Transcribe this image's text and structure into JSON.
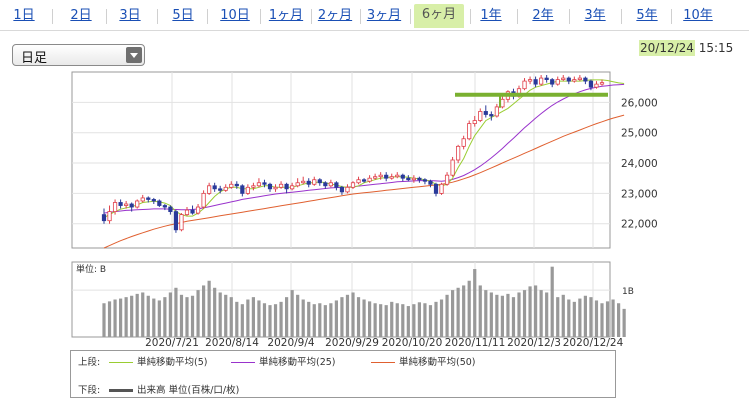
{
  "tabs": [
    {
      "label": "1日",
      "active": false
    },
    {
      "label": "2日",
      "active": false
    },
    {
      "label": "3日",
      "active": false
    },
    {
      "label": "5日",
      "active": false
    },
    {
      "label": "10日",
      "active": false
    },
    {
      "label": "1ヶ月",
      "active": false
    },
    {
      "label": "2ヶ月",
      "active": false
    },
    {
      "label": "3ヶ月",
      "active": false
    },
    {
      "label": "6ヶ月",
      "active": true
    },
    {
      "label": "1年",
      "active": false
    },
    {
      "label": "2年",
      "active": false
    },
    {
      "label": "3年",
      "active": false
    },
    {
      "label": "5年",
      "active": false
    },
    {
      "label": "10年",
      "active": false
    }
  ],
  "select": {
    "value": "日足"
  },
  "datetime": {
    "date": "20/12/24",
    "time": "15:15"
  },
  "legend": {
    "upper_label": "上段:",
    "lower_label": "下段:",
    "ma5": "単純移動平均(5)",
    "ma25": "単純移動平均(25)",
    "ma50": "単純移動平均(50)",
    "volume": "出来高 単位(百株/口/枚)"
  },
  "colors": {
    "up": "#e0404a",
    "down": "#2a3a9a",
    "ma5": "#9acd32",
    "ma25": "#9933cc",
    "ma50": "#e06030",
    "volume": "#999999",
    "highlight": "#7ab030"
  },
  "chart_data": {
    "type": "candlestick",
    "price_ticks": [
      22000,
      23000,
      24000,
      25000,
      26000
    ],
    "price_range": [
      21200,
      27000
    ],
    "x_labels": [
      "2020/7/21",
      "2020/8/14",
      "2020/9/4",
      "2020/9/29",
      "2020/10/20",
      "2020/11/11",
      "2020/12/3",
      "2020/12/24"
    ],
    "volume_unit": "単位: B",
    "volume_tick": "1B",
    "volume_range": [
      0,
      1.6
    ],
    "highlight_level": 26250,
    "candles": [
      {
        "o": 22300,
        "c": 22100,
        "h": 22500,
        "l": 22000
      },
      {
        "o": 22100,
        "c": 22400,
        "h": 22600,
        "l": 22000
      },
      {
        "o": 22400,
        "c": 22700,
        "h": 22800,
        "l": 22300
      },
      {
        "o": 22700,
        "c": 22600,
        "h": 22800,
        "l": 22500
      },
      {
        "o": 22600,
        "c": 22650,
        "h": 22750,
        "l": 22500
      },
      {
        "o": 22650,
        "c": 22550,
        "h": 22700,
        "l": 22400
      },
      {
        "o": 22550,
        "c": 22750,
        "h": 22800,
        "l": 22500
      },
      {
        "o": 22750,
        "c": 22850,
        "h": 22950,
        "l": 22700
      },
      {
        "o": 22850,
        "c": 22800,
        "h": 22900,
        "l": 22700
      },
      {
        "o": 22800,
        "c": 22750,
        "h": 22850,
        "l": 22650
      },
      {
        "o": 22750,
        "c": 22600,
        "h": 22800,
        "l": 22550
      },
      {
        "o": 22600,
        "c": 22550,
        "h": 22650,
        "l": 22450
      },
      {
        "o": 22550,
        "c": 22400,
        "h": 22600,
        "l": 22300
      },
      {
        "o": 22400,
        "c": 21800,
        "h": 22450,
        "l": 21700
      },
      {
        "o": 21800,
        "c": 22300,
        "h": 22350,
        "l": 21750
      },
      {
        "o": 22300,
        "c": 22450,
        "h": 22550,
        "l": 22250
      },
      {
        "o": 22450,
        "c": 22350,
        "h": 22600,
        "l": 22300
      },
      {
        "o": 22350,
        "c": 22550,
        "h": 22650,
        "l": 22300
      },
      {
        "o": 22550,
        "c": 23000,
        "h": 23100,
        "l": 22500
      },
      {
        "o": 23000,
        "c": 23250,
        "h": 23350,
        "l": 22950
      },
      {
        "o": 23250,
        "c": 23150,
        "h": 23350,
        "l": 23050
      },
      {
        "o": 23150,
        "c": 23100,
        "h": 23250,
        "l": 23000
      },
      {
        "o": 23100,
        "c": 23200,
        "h": 23300,
        "l": 23050
      },
      {
        "o": 23200,
        "c": 23300,
        "h": 23400,
        "l": 23150
      },
      {
        "o": 23300,
        "c": 23250,
        "h": 23400,
        "l": 23150
      },
      {
        "o": 23250,
        "c": 23000,
        "h": 23300,
        "l": 22900
      },
      {
        "o": 23000,
        "c": 23200,
        "h": 23300,
        "l": 22950
      },
      {
        "o": 23200,
        "c": 23250,
        "h": 23350,
        "l": 23100
      },
      {
        "o": 23250,
        "c": 23350,
        "h": 23500,
        "l": 23200
      },
      {
        "o": 23350,
        "c": 23300,
        "h": 23450,
        "l": 23200
      },
      {
        "o": 23300,
        "c": 23150,
        "h": 23350,
        "l": 23050
      },
      {
        "o": 23150,
        "c": 23200,
        "h": 23300,
        "l": 23050
      },
      {
        "o": 23200,
        "c": 23300,
        "h": 23400,
        "l": 23150
      },
      {
        "o": 23300,
        "c": 23150,
        "h": 23350,
        "l": 23000
      },
      {
        "o": 23150,
        "c": 23250,
        "h": 23350,
        "l": 23100
      },
      {
        "o": 23250,
        "c": 23350,
        "h": 23500,
        "l": 23200
      },
      {
        "o": 23350,
        "c": 23400,
        "h": 23550,
        "l": 23300
      },
      {
        "o": 23400,
        "c": 23300,
        "h": 23500,
        "l": 23200
      },
      {
        "o": 23300,
        "c": 23450,
        "h": 23550,
        "l": 23250
      },
      {
        "o": 23450,
        "c": 23350,
        "h": 23500,
        "l": 23250
      },
      {
        "o": 23350,
        "c": 23250,
        "h": 23400,
        "l": 23150
      },
      {
        "o": 23250,
        "c": 23350,
        "h": 23450,
        "l": 23200
      },
      {
        "o": 23350,
        "c": 23200,
        "h": 23400,
        "l": 23100
      },
      {
        "o": 23200,
        "c": 23050,
        "h": 23250,
        "l": 22950
      },
      {
        "o": 23050,
        "c": 23200,
        "h": 23300,
        "l": 23000
      },
      {
        "o": 23200,
        "c": 23350,
        "h": 23400,
        "l": 23150
      },
      {
        "o": 23350,
        "c": 23450,
        "h": 23550,
        "l": 23300
      },
      {
        "o": 23450,
        "c": 23400,
        "h": 23500,
        "l": 23350
      },
      {
        "o": 23400,
        "c": 23500,
        "h": 23600,
        "l": 23350
      },
      {
        "o": 23500,
        "c": 23550,
        "h": 23650,
        "l": 23450
      },
      {
        "o": 23550,
        "c": 23600,
        "h": 23700,
        "l": 23450
      },
      {
        "o": 23600,
        "c": 23500,
        "h": 23700,
        "l": 23400
      },
      {
        "o": 23500,
        "c": 23550,
        "h": 23650,
        "l": 23450
      },
      {
        "o": 23550,
        "c": 23600,
        "h": 23700,
        "l": 23500
      },
      {
        "o": 23600,
        "c": 23500,
        "h": 23650,
        "l": 23400
      },
      {
        "o": 23500,
        "c": 23450,
        "h": 23600,
        "l": 23400
      },
      {
        "o": 23450,
        "c": 23500,
        "h": 23600,
        "l": 23350
      },
      {
        "o": 23500,
        "c": 23450,
        "h": 23550,
        "l": 23350
      },
      {
        "o": 23450,
        "c": 23400,
        "h": 23500,
        "l": 23300
      },
      {
        "o": 23400,
        "c": 23300,
        "h": 23450,
        "l": 23200
      },
      {
        "o": 23300,
        "c": 23000,
        "h": 23350,
        "l": 22900
      },
      {
        "o": 23000,
        "c": 23300,
        "h": 23350,
        "l": 22950
      },
      {
        "o": 23300,
        "c": 23600,
        "h": 23700,
        "l": 23250
      },
      {
        "o": 23600,
        "c": 24100,
        "h": 24200,
        "l": 23550
      },
      {
        "o": 24100,
        "c": 24550,
        "h": 24600,
        "l": 24000
      },
      {
        "o": 24550,
        "c": 24800,
        "h": 24900,
        "l": 24450
      },
      {
        "o": 24800,
        "c": 25300,
        "h": 25400,
        "l": 24750
      },
      {
        "o": 25300,
        "c": 25400,
        "h": 25550,
        "l": 25200
      },
      {
        "o": 25400,
        "c": 25700,
        "h": 25800,
        "l": 25350
      },
      {
        "o": 25700,
        "c": 25600,
        "h": 25900,
        "l": 25500
      },
      {
        "o": 25600,
        "c": 25550,
        "h": 25700,
        "l": 25400
      },
      {
        "o": 25550,
        "c": 25850,
        "h": 25950,
        "l": 25500
      },
      {
        "o": 25850,
        "c": 26100,
        "h": 26200,
        "l": 25800
      },
      {
        "o": 26100,
        "c": 26350,
        "h": 26400,
        "l": 26000
      },
      {
        "o": 26350,
        "c": 26200,
        "h": 26450,
        "l": 26100
      },
      {
        "o": 26200,
        "c": 26450,
        "h": 26550,
        "l": 26150
      },
      {
        "o": 26450,
        "c": 26700,
        "h": 26800,
        "l": 26400
      },
      {
        "o": 26700,
        "c": 26750,
        "h": 26850,
        "l": 26600
      },
      {
        "o": 26750,
        "c": 26600,
        "h": 26850,
        "l": 26500
      },
      {
        "o": 26600,
        "c": 26800,
        "h": 26900,
        "l": 26550
      },
      {
        "o": 26800,
        "c": 26750,
        "h": 26900,
        "l": 26650
      },
      {
        "o": 26750,
        "c": 26600,
        "h": 26800,
        "l": 26500
      },
      {
        "o": 26600,
        "c": 26750,
        "h": 26850,
        "l": 26550
      },
      {
        "o": 26750,
        "c": 26800,
        "h": 26900,
        "l": 26700
      },
      {
        "o": 26800,
        "c": 26700,
        "h": 26850,
        "l": 26600
      },
      {
        "o": 26700,
        "c": 26750,
        "h": 26850,
        "l": 26650
      },
      {
        "o": 26750,
        "c": 26800,
        "h": 26900,
        "l": 26700
      },
      {
        "o": 26800,
        "c": 26700,
        "h": 26850,
        "l": 26600
      },
      {
        "o": 26700,
        "c": 26500,
        "h": 26750,
        "l": 26400
      },
      {
        "o": 26500,
        "c": 26600,
        "h": 26700,
        "l": 26450
      },
      {
        "o": 26600,
        "c": 26650,
        "h": 26750,
        "l": 26550
      }
    ],
    "ma5": [
      22200,
      22300,
      22400,
      22480,
      22520,
      22560,
      22620,
      22700,
      22720,
      22740,
      22720,
      22680,
      22600,
      22400,
      22300,
      22250,
      22250,
      22350,
      22500,
      22700,
      22900,
      23050,
      23150,
      23200,
      23200,
      23150,
      23150,
      23150,
      23200,
      23250,
      23250,
      23200,
      23200,
      23200,
      23200,
      23250,
      23300,
      23350,
      23350,
      23380,
      23350,
      23300,
      23280,
      23220,
      23200,
      23200,
      23250,
      23350,
      23400,
      23450,
      23500,
      23520,
      23540,
      23550,
      23550,
      23530,
      23500,
      23480,
      23450,
      23400,
      23300,
      23250,
      23300,
      23500,
      23850,
      24150,
      24550,
      24900,
      25150,
      25400,
      25500,
      25600,
      25700,
      25800,
      25950,
      26100,
      26250,
      26400,
      26500,
      26550,
      26600,
      26650,
      26700,
      26700,
      26700,
      26700,
      26700,
      26720,
      26740,
      26740,
      26740,
      26720,
      26680,
      26640,
      26620
    ],
    "ma25": [
      22350,
      22380,
      22400,
      22420,
      22440,
      22450,
      22460,
      22470,
      22480,
      22490,
      22490,
      22490,
      22480,
      22470,
      22460,
      22460,
      22470,
      22490,
      22520,
      22560,
      22600,
      22640,
      22680,
      22720,
      22760,
      22800,
      22830,
      22860,
      22890,
      22920,
      22950,
      22980,
      23000,
      23020,
      23040,
      23060,
      23080,
      23100,
      23120,
      23140,
      23160,
      23180,
      23190,
      23200,
      23210,
      23220,
      23240,
      23260,
      23280,
      23300,
      23320,
      23340,
      23360,
      23380,
      23390,
      23400,
      23410,
      23420,
      23420,
      23420,
      23410,
      23400,
      23420,
      23460,
      23520,
      23590,
      23680,
      23780,
      23900,
      24030,
      24170,
      24320,
      24480,
      24650,
      24820,
      24990,
      25160,
      25320,
      25480,
      25630,
      25770,
      25900,
      26010,
      26110,
      26200,
      26280,
      26350,
      26410,
      26460,
      26500,
      26530,
      26550,
      26570,
      26580,
      26590
    ],
    "ma50": [
      21200,
      21280,
      21360,
      21440,
      21510,
      21580,
      21640,
      21700,
      21760,
      21820,
      21870,
      21920,
      21960,
      22000,
      22040,
      22080,
      22110,
      22140,
      22170,
      22200,
      22230,
      22260,
      22290,
      22320,
      22350,
      22380,
      22410,
      22440,
      22470,
      22500,
      22530,
      22560,
      22590,
      22620,
      22650,
      22680,
      22710,
      22740,
      22770,
      22800,
      22830,
      22860,
      22890,
      22920,
      22950,
      22980,
      23000,
      23020,
      23040,
      23060,
      23080,
      23100,
      23120,
      23140,
      23160,
      23180,
      23200,
      23220,
      23240,
      23260,
      23280,
      23300,
      23330,
      23370,
      23420,
      23480,
      23540,
      23610,
      23680,
      23760,
      23840,
      23920,
      24000,
      24080,
      24160,
      24240,
      24320,
      24400,
      24480,
      24560,
      24640,
      24720,
      24800,
      24880,
      24950,
      25020,
      25090,
      25160,
      25230,
      25300,
      25360,
      25420,
      25480,
      25530,
      25580
    ],
    "volume": [
      0.72,
      0.76,
      0.8,
      0.82,
      0.85,
      0.88,
      0.92,
      0.95,
      0.88,
      0.82,
      0.78,
      0.85,
      0.95,
      1.05,
      0.9,
      0.85,
      0.88,
      1.0,
      1.1,
      1.2,
      1.05,
      0.95,
      0.9,
      0.85,
      0.75,
      0.7,
      0.8,
      0.85,
      0.78,
      0.72,
      0.68,
      0.7,
      0.75,
      0.85,
      1.0,
      0.9,
      0.8,
      0.75,
      0.7,
      0.72,
      0.68,
      0.72,
      0.78,
      0.85,
      0.9,
      0.95,
      0.85,
      0.8,
      0.76,
      0.72,
      0.7,
      0.68,
      0.75,
      0.72,
      0.7,
      0.66,
      0.7,
      0.74,
      0.72,
      0.68,
      0.75,
      0.8,
      0.9,
      1.0,
      1.05,
      1.1,
      1.2,
      1.45,
      1.1,
      1.0,
      0.95,
      0.9,
      0.88,
      0.92,
      0.85,
      0.95,
      1.0,
      1.08,
      1.1,
      1.0,
      0.95,
      1.5,
      0.85,
      0.9,
      0.8,
      0.75,
      0.82,
      0.88,
      0.85,
      0.78,
      0.72,
      0.76,
      0.8,
      0.72,
      0.6
    ]
  }
}
